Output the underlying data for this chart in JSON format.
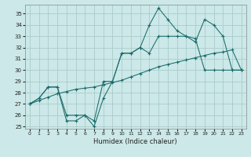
{
  "xlabel": "Humidex (Indice chaleur)",
  "background_color": "#cce8e8",
  "grid_color": "#aacccc",
  "line_color": "#1a6b6b",
  "xlim": [
    -0.5,
    23.5
  ],
  "ylim": [
    24.8,
    35.8
  ],
  "xticks": [
    0,
    1,
    2,
    3,
    4,
    5,
    6,
    7,
    8,
    9,
    10,
    11,
    12,
    13,
    14,
    15,
    16,
    17,
    18,
    19,
    20,
    21,
    22,
    23
  ],
  "yticks": [
    25,
    26,
    27,
    28,
    29,
    30,
    31,
    32,
    33,
    34,
    35
  ],
  "line_diagonal_x": [
    0,
    1,
    2,
    3,
    4,
    5,
    6,
    7,
    8,
    9,
    10,
    11,
    12,
    13,
    14,
    15,
    16,
    17,
    18,
    19,
    20,
    21,
    22,
    23
  ],
  "line_diagonal_y": [
    27.0,
    27.3,
    27.6,
    27.9,
    28.1,
    28.3,
    28.4,
    28.5,
    28.7,
    28.9,
    29.1,
    29.4,
    29.7,
    30.0,
    30.3,
    30.5,
    30.7,
    30.9,
    31.1,
    31.3,
    31.5,
    31.6,
    31.8,
    30.0
  ],
  "line_mid_x": [
    0,
    1,
    2,
    3,
    4,
    5,
    6,
    7,
    8,
    9,
    10,
    11,
    12,
    13,
    14,
    15,
    16,
    17,
    18,
    19,
    20,
    21,
    22,
    23
  ],
  "line_mid_y": [
    27.0,
    27.5,
    28.5,
    28.5,
    26.0,
    26.0,
    26.0,
    25.5,
    29.0,
    29.0,
    31.5,
    31.5,
    32.0,
    31.5,
    33.0,
    33.0,
    33.0,
    33.0,
    32.8,
    30.0,
    30.0,
    30.0,
    30.0,
    30.0
  ],
  "line_top_x": [
    0,
    1,
    2,
    3,
    4,
    5,
    6,
    7,
    8,
    9,
    10,
    11,
    12,
    13,
    14,
    15,
    16,
    17,
    18,
    19,
    20,
    21,
    22,
    23
  ],
  "line_top_y": [
    27.0,
    27.5,
    28.5,
    28.5,
    25.5,
    25.5,
    26.0,
    25.0,
    27.5,
    29.0,
    31.5,
    31.5,
    32.0,
    34.0,
    35.5,
    34.5,
    33.5,
    33.0,
    32.5,
    34.5,
    34.0,
    33.0,
    30.0,
    30.0
  ]
}
